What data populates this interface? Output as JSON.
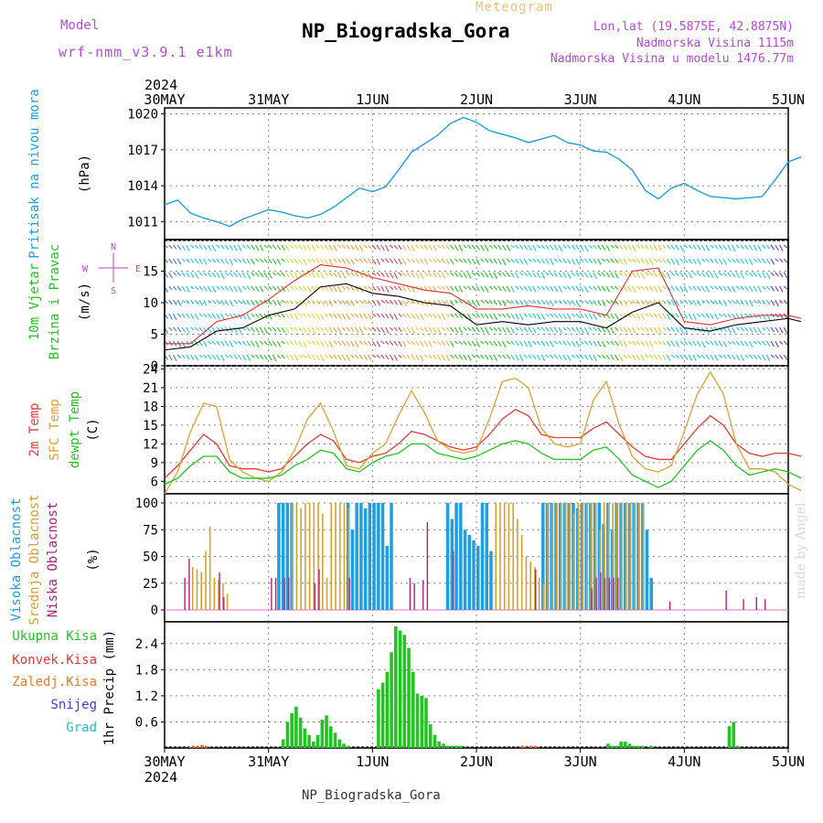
{
  "header": {
    "title": "NP_Biogradska_Gora",
    "subtitle": "Meteogram",
    "model_label": "Model",
    "model_name": "wrf-nmm_v3.9.1 e1km",
    "coords": "Lon,lat (19.5875E, 42.8875N)",
    "elevation": "Nadmorska Visina 1115m",
    "elevation_model": "Nadmorska Visina u modelu 1476.77m"
  },
  "footer": {
    "station": "NP_Biogradska_Gora",
    "signature": "made by Angel"
  },
  "colors": {
    "pressure": "#1f9ee0",
    "wind_label": "#22c422",
    "temp2m": "#e53a3a",
    "sfc": "#e0a030",
    "dewpt": "#22c422",
    "high": "#1f9ee0",
    "mid": "#d4a030",
    "low": "#b0207a",
    "total": "#22c422",
    "conv": "#e53a3a",
    "frz": "#f07a20",
    "snow": "#4040e0",
    "grad": "#20c0c0",
    "purple": "#b34ad6"
  },
  "chart_data": [
    {
      "type": "line",
      "panel": "pressure",
      "title": "",
      "x_tick_labels": [
        "30MAY",
        "31MAY",
        "1JUN",
        "2JUN",
        "3JUN",
        "4JUN",
        "5JUN"
      ],
      "year": "2024",
      "x_unit": "hours since 30MAY 00 UTC",
      "ylabel": "(hPa)",
      "label": "Pritisak na nivou mora",
      "ylim": [
        1009.5,
        1020.5
      ],
      "yticks": [
        "1011",
        "1014",
        "1017",
        "1020"
      ],
      "series": [
        {
          "name": "Pritisak na nivou mora",
          "x": [
            0,
            3,
            6,
            9,
            12,
            15,
            18,
            21,
            24,
            27,
            30,
            33,
            36,
            39,
            42,
            45,
            48,
            51,
            54,
            57,
            60,
            63,
            66,
            69,
            72,
            75,
            78,
            81,
            84,
            87,
            90,
            93,
            96,
            99,
            102,
            105,
            108,
            111,
            114,
            117,
            120,
            123,
            126,
            129,
            132,
            135,
            138,
            141,
            144,
            147
          ],
          "y": [
            1012.4,
            1012.8,
            1011.7,
            1011.3,
            1011.0,
            1010.6,
            1011.2,
            1011.6,
            1012.0,
            1011.8,
            1011.5,
            1011.3,
            1011.6,
            1012.2,
            1013.0,
            1013.8,
            1013.5,
            1013.9,
            1015.3,
            1016.8,
            1017.5,
            1018.2,
            1019.2,
            1019.7,
            1019.3,
            1018.6,
            1018.3,
            1018.0,
            1017.6,
            1017.9,
            1018.2,
            1017.6,
            1017.4,
            1016.9,
            1016.8,
            1016.2,
            1015.3,
            1013.6,
            1012.9,
            1013.8,
            1014.2,
            1013.6,
            1013.1,
            1013.0,
            1012.9,
            1013.0,
            1013.1,
            1014.5,
            1016.0,
            1016.4
          ]
        }
      ]
    },
    {
      "type": "line",
      "panel": "wind",
      "label_lines": [
        "10m Vjetar",
        "Brzina i Pravac"
      ],
      "ylabel": "(m/s)",
      "compass": {
        "n": "N",
        "s": "S",
        "w": "W",
        "e": "E"
      },
      "ylim": [
        0,
        20
      ],
      "yticks": [
        "0",
        "5",
        "10",
        "15"
      ],
      "series": [
        {
          "name": "speed",
          "x": [
            0,
            6,
            12,
            18,
            24,
            30,
            36,
            42,
            48,
            54,
            60,
            66,
            72,
            78,
            84,
            90,
            96,
            102,
            108,
            114,
            120,
            126,
            132,
            138,
            144,
            147
          ],
          "y": [
            2.5,
            3.0,
            5.5,
            6.0,
            8.0,
            9.0,
            12.5,
            13.0,
            11.5,
            11.0,
            10.0,
            9.5,
            6.5,
            7.0,
            6.5,
            7.0,
            7.0,
            6.0,
            8.5,
            10.0,
            6.0,
            5.5,
            6.5,
            7.0,
            7.5,
            7.0
          ]
        },
        {
          "name": "gust",
          "x": [
            0,
            6,
            12,
            18,
            24,
            30,
            36,
            42,
            48,
            54,
            60,
            66,
            72,
            78,
            84,
            90,
            96,
            102,
            108,
            114,
            120,
            126,
            132,
            138,
            144,
            147
          ],
          "y": [
            3.5,
            3.5,
            7.0,
            8.0,
            10.5,
            13.5,
            16.0,
            15.5,
            14.0,
            13.0,
            12.0,
            11.5,
            9.0,
            9.0,
            9.5,
            9.0,
            9.0,
            8.0,
            15.0,
            15.5,
            7.0,
            6.5,
            7.5,
            8.0,
            8.0,
            7.5
          ]
        }
      ]
    },
    {
      "type": "line",
      "panel": "temperature",
      "label_lines": [
        "2m Temp",
        "SFC Temp",
        "dewpt Temp"
      ],
      "ylabel": "(C)",
      "ylim": [
        4,
        24.5
      ],
      "yticks": [
        "6",
        "9",
        "12",
        "15",
        "18",
        "21",
        "24"
      ],
      "series": [
        {
          "name": "2m Temp",
          "x": [
            0,
            3,
            6,
            9,
            12,
            15,
            18,
            21,
            24,
            27,
            30,
            33,
            36,
            39,
            42,
            45,
            48,
            51,
            54,
            57,
            60,
            63,
            66,
            69,
            72,
            75,
            78,
            81,
            84,
            87,
            90,
            93,
            96,
            99,
            102,
            105,
            108,
            111,
            114,
            117,
            120,
            123,
            126,
            129,
            132,
            135,
            138,
            141,
            144,
            147
          ],
          "y": [
            6.5,
            8.5,
            11.0,
            13.5,
            12.0,
            8.5,
            8.0,
            8.0,
            7.5,
            8.0,
            10.0,
            12.0,
            13.5,
            12.5,
            9.5,
            9.0,
            10.0,
            10.5,
            12.0,
            14.0,
            13.5,
            12.5,
            11.5,
            11.0,
            11.5,
            13.5,
            16.0,
            17.5,
            16.5,
            13.5,
            13.0,
            13.0,
            13.0,
            14.5,
            15.5,
            13.5,
            11.5,
            10.0,
            9.5,
            9.5,
            12.0,
            14.5,
            16.5,
            15.0,
            12.0,
            10.5,
            10.0,
            10.5,
            10.5,
            10.0
          ]
        },
        {
          "name": "SFC Temp",
          "x": [
            0,
            3,
            6,
            9,
            12,
            15,
            18,
            21,
            24,
            27,
            30,
            33,
            36,
            39,
            42,
            45,
            48,
            51,
            54,
            57,
            60,
            63,
            66,
            69,
            72,
            75,
            78,
            81,
            84,
            87,
            90,
            93,
            96,
            99,
            102,
            105,
            108,
            111,
            114,
            117,
            120,
            123,
            126,
            129,
            132,
            135,
            138,
            141,
            144,
            147
          ],
          "y": [
            4.0,
            7.5,
            14.0,
            18.5,
            18.0,
            9.5,
            7.5,
            6.5,
            6.0,
            7.5,
            11.0,
            16.0,
            18.5,
            14.0,
            8.5,
            8.0,
            10.5,
            12.0,
            16.5,
            20.5,
            17.0,
            12.5,
            11.0,
            10.5,
            11.0,
            16.0,
            22.0,
            22.5,
            21.0,
            14.5,
            12.0,
            11.5,
            12.0,
            19.0,
            22.0,
            15.0,
            10.0,
            8.0,
            7.5,
            8.5,
            14.0,
            20.0,
            23.5,
            20.0,
            12.0,
            8.0,
            8.0,
            7.5,
            5.5,
            4.5
          ]
        },
        {
          "name": "dewpt Temp",
          "x": [
            0,
            3,
            6,
            9,
            12,
            15,
            18,
            21,
            24,
            27,
            30,
            33,
            36,
            39,
            42,
            45,
            48,
            51,
            54,
            57,
            60,
            63,
            66,
            69,
            72,
            75,
            78,
            81,
            84,
            87,
            90,
            93,
            96,
            99,
            102,
            105,
            108,
            111,
            114,
            117,
            120,
            123,
            126,
            129,
            132,
            135,
            138,
            141,
            144,
            147
          ],
          "y": [
            5.5,
            6.5,
            8.5,
            10.0,
            10.0,
            7.5,
            6.5,
            6.5,
            6.5,
            7.0,
            8.5,
            9.5,
            11.0,
            10.5,
            8.0,
            7.5,
            9.0,
            10.0,
            10.5,
            12.0,
            12.0,
            10.5,
            10.0,
            9.5,
            10.0,
            11.0,
            12.0,
            12.5,
            12.0,
            10.5,
            9.5,
            9.5,
            9.5,
            11.0,
            11.5,
            9.5,
            7.0,
            6.0,
            5.0,
            6.0,
            8.5,
            11.0,
            12.5,
            11.0,
            8.5,
            7.0,
            7.5,
            8.0,
            7.5,
            6.5
          ]
        }
      ]
    },
    {
      "type": "bar",
      "panel": "clouds",
      "label_lines": [
        "Visoka Oblacnost",
        "Srednja Oblacnost",
        "Niska Oblacnost"
      ],
      "ylabel": "(%)",
      "ylim": [
        0,
        100
      ],
      "yticks": [
        "0",
        "25",
        "50",
        "75",
        "100"
      ],
      "series": [
        {
          "name": "Visoka Oblacnost",
          "x": [
            26,
            27,
            28,
            29,
            42,
            43,
            44,
            45,
            46,
            47,
            48,
            49,
            50,
            51,
            52,
            65,
            66,
            67,
            68,
            69,
            70,
            71,
            72,
            73,
            74,
            75,
            87,
            88,
            89,
            90,
            91,
            92,
            93,
            94,
            95,
            96,
            97,
            98,
            99,
            100,
            101,
            102,
            103,
            104,
            105,
            106,
            107,
            108,
            109,
            110,
            111,
            112
          ],
          "y": [
            100,
            100,
            100,
            100,
            100,
            75,
            100,
            100,
            95,
            100,
            100,
            100,
            100,
            60,
            100,
            100,
            85,
            100,
            100,
            75,
            70,
            65,
            60,
            100,
            100,
            55,
            100,
            100,
            100,
            100,
            100,
            100,
            100,
            100,
            95,
            100,
            100,
            100,
            100,
            100,
            80,
            100,
            75,
            100,
            100,
            100,
            100,
            100,
            100,
            100,
            75,
            30
          ]
        },
        {
          "name": "Srednja Oblacnost",
          "x": [
            6,
            7,
            8,
            9,
            10,
            11,
            12,
            13,
            14,
            29,
            30,
            31,
            32,
            33,
            34,
            35,
            36,
            37,
            38,
            39,
            40,
            41,
            42,
            76,
            77,
            78,
            79,
            80,
            81,
            82,
            83,
            84,
            85,
            86,
            87,
            88,
            89,
            90,
            91,
            92,
            93,
            94,
            95,
            96,
            97,
            98,
            99,
            100,
            101,
            102,
            103,
            104,
            105,
            106,
            107,
            108,
            109,
            110
          ],
          "y": [
            40,
            38,
            35,
            55,
            78,
            30,
            28,
            25,
            15,
            100,
            100,
            95,
            100,
            100,
            100,
            100,
            90,
            30,
            100,
            100,
            100,
            100,
            95,
            100,
            100,
            100,
            100,
            100,
            85,
            70,
            50,
            45,
            40,
            30,
            25,
            100,
            100,
            100,
            100,
            100,
            100,
            90,
            100,
            100,
            100,
            100,
            100,
            75,
            100,
            100,
            100,
            100,
            100,
            100,
            100,
            100,
            100,
            100
          ]
        },
        {
          "name": "Niska Oblacnost",
          "x": [
            4,
            5,
            12,
            13,
            24,
            25,
            27,
            28,
            34,
            35,
            42,
            56,
            57,
            59,
            60,
            66,
            85,
            98,
            99,
            100,
            101,
            102,
            103,
            104,
            116,
            129,
            133,
            136,
            138
          ],
          "y": [
            30,
            48,
            35,
            12,
            30,
            30,
            30,
            30,
            25,
            38,
            30,
            30,
            25,
            28,
            82,
            55,
            38,
            20,
            30,
            35,
            30,
            30,
            30,
            30,
            8,
            18,
            10,
            12,
            10
          ]
        }
      ]
    },
    {
      "type": "bar",
      "panel": "precip",
      "label_lines": [
        "Ukupna Kisa",
        "Konvek.Kisa",
        "Zaledj.Kisa",
        "Snijeg",
        "Grad"
      ],
      "ylabel": "1hr Precip (mm)",
      "ylim": [
        0,
        2.9
      ],
      "yticks": [
        "0.6",
        "1.2",
        "1.8",
        "2.4"
      ],
      "series": [
        {
          "name": "Ukupna Kisa",
          "x": [
            27,
            28,
            29,
            30,
            31,
            32,
            33,
            34,
            35,
            36,
            37,
            38,
            39,
            40,
            41,
            42,
            49,
            50,
            51,
            52,
            53,
            54,
            55,
            56,
            57,
            58,
            59,
            60,
            61,
            62,
            63,
            64,
            65,
            66,
            67,
            68,
            102,
            103,
            104,
            105,
            106,
            107,
            108,
            109,
            110,
            112,
            130,
            131,
            132
          ],
          "y": [
            0.2,
            0.6,
            0.8,
            0.95,
            0.7,
            0.45,
            0.3,
            0.15,
            0.3,
            0.65,
            0.75,
            0.5,
            0.35,
            0.2,
            0.1,
            0.05,
            1.35,
            1.5,
            1.75,
            2.2,
            2.8,
            2.7,
            2.6,
            2.3,
            1.75,
            1.25,
            1.2,
            1.15,
            0.55,
            0.3,
            0.15,
            0.1,
            0.05,
            0.05,
            0.05,
            0.05,
            0.1,
            0.05,
            0.05,
            0.15,
            0.15,
            0.1,
            0.05,
            0.05,
            0.05,
            0.05,
            0.5,
            0.6,
            0.05
          ]
        },
        {
          "name": "Konvek.Kisa",
          "x": [
            6,
            7,
            8,
            9,
            82,
            83,
            84,
            85
          ],
          "y": [
            0.05,
            0.05,
            0.07,
            0.05,
            0.05,
            0.05,
            0.05,
            0.05
          ]
        },
        {
          "name": "Zaledj.Kisa",
          "x": [
            5,
            6,
            7,
            8,
            9,
            82,
            84,
            85
          ],
          "y": [
            0.03,
            0.05,
            0.05,
            0.07,
            0.05,
            0.05,
            0.05,
            0.04
          ]
        },
        {
          "name": "Snijeg",
          "x": [],
          "y": []
        },
        {
          "name": "Grad",
          "x": [],
          "y": []
        }
      ]
    }
  ]
}
